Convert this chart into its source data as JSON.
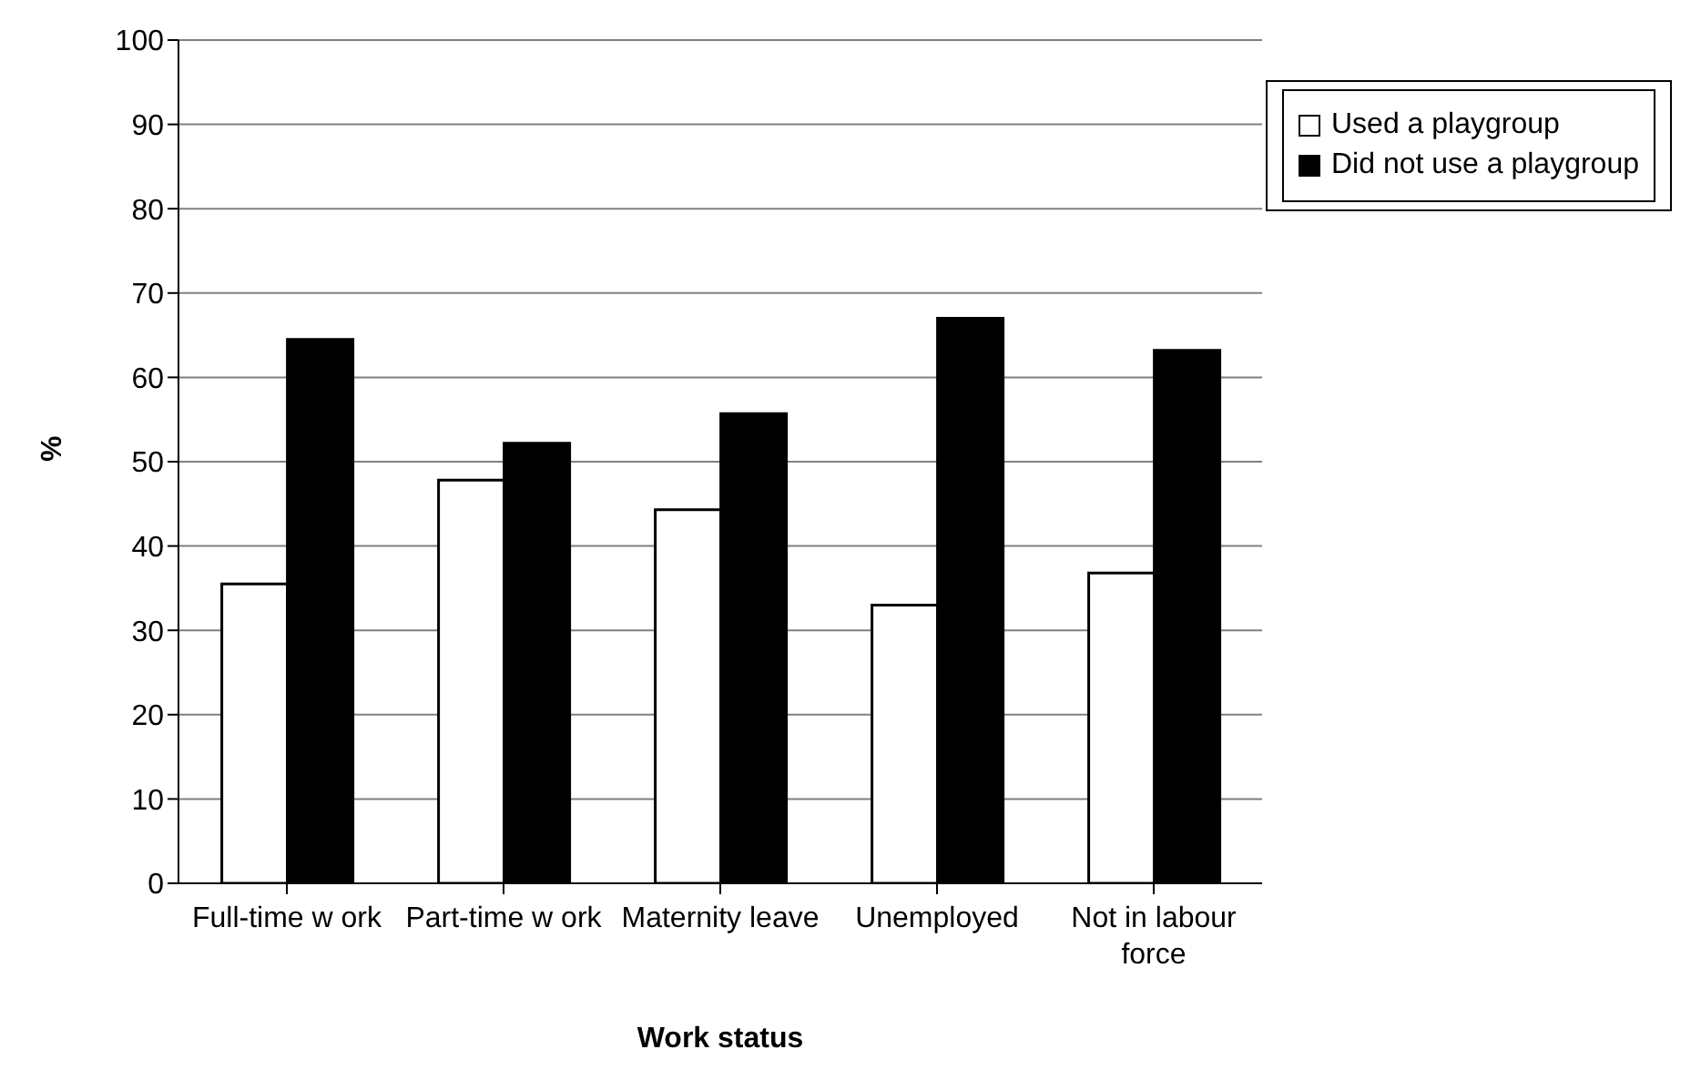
{
  "chart_data": {
    "type": "bar",
    "xlabel": "Work status",
    "ylabel": "%",
    "categories": [
      "Full-time w ork",
      "Part-time w ork",
      "Maternity leave",
      "Unemployed",
      "Not in labour force"
    ],
    "series": [
      {
        "name": "Used a playgroup",
        "color": "#ffffff",
        "values": [
          35.5,
          47.8,
          44.3,
          33,
          36.8
        ]
      },
      {
        "name": "Did not use a playgroup",
        "color": "#000000",
        "values": [
          64.5,
          52.2,
          55.7,
          67,
          63.2
        ]
      }
    ],
    "ylim": [
      0,
      100
    ],
    "yticks": [
      0,
      10,
      20,
      30,
      40,
      50,
      60,
      70,
      80,
      90,
      100
    ],
    "grid": "y",
    "legend": "top right"
  }
}
